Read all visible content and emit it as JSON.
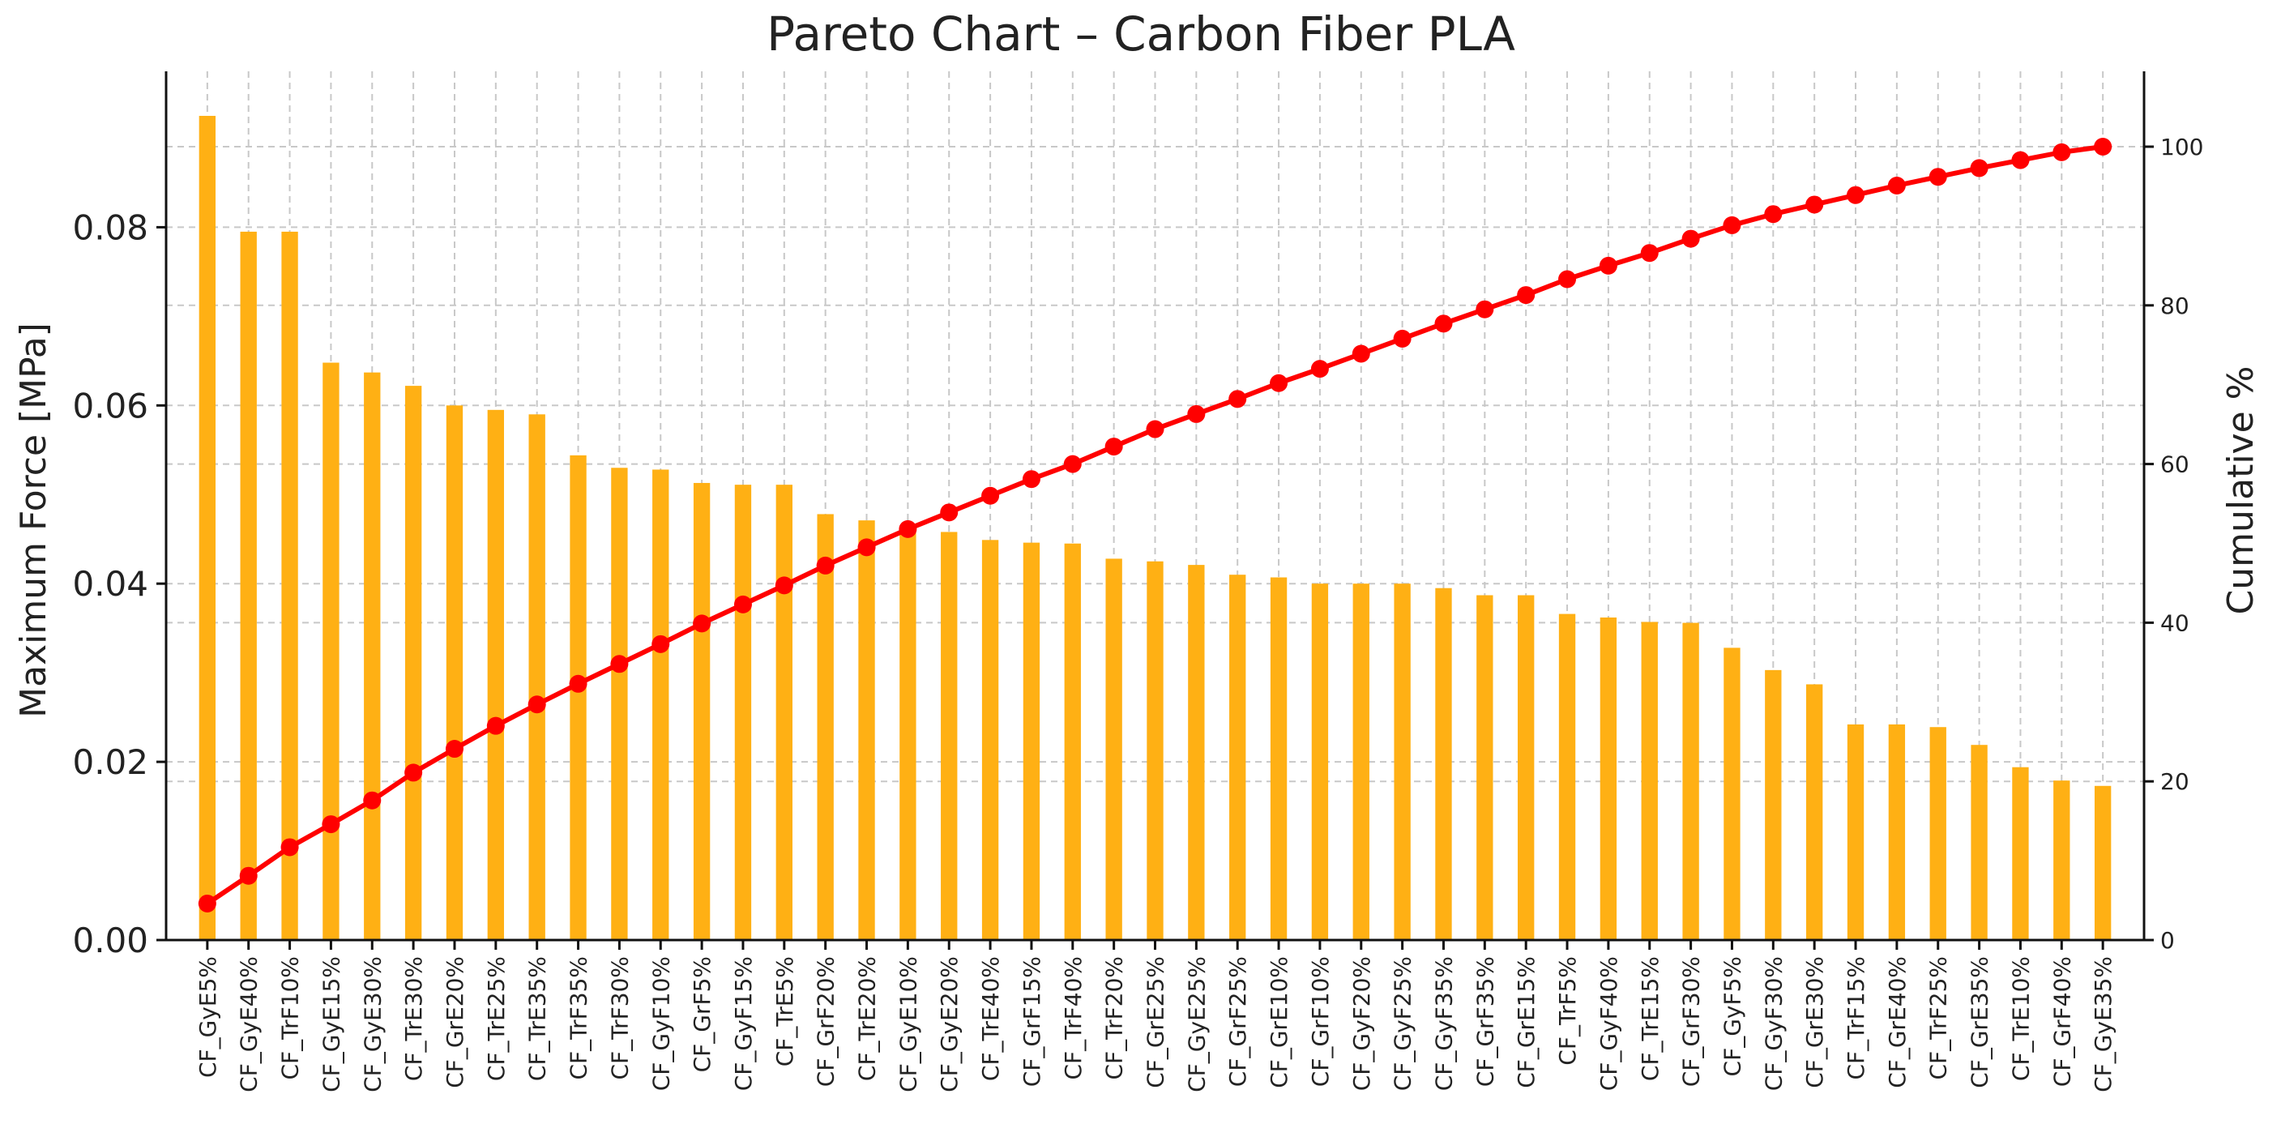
{
  "chart_data": {
    "type": "bar",
    "title": "Pareto Chart – Carbon Fiber PLA",
    "xlabel": "",
    "ylabel": "Maximum Force [MPa]",
    "y2label": "Cumulative %",
    "ylim": [
      0,
      0.0975
    ],
    "y2lim": [
      0,
      109.5
    ],
    "yticks": [
      "0.00",
      "0.02",
      "0.04",
      "0.06",
      "0.08"
    ],
    "y2ticks": [
      "0",
      "20",
      "40",
      "60",
      "80",
      "100"
    ],
    "grid": true,
    "categories": [
      "CF_GyE5%",
      "CF_GyE40%",
      "CF_TrF10%",
      "CF_GyE15%",
      "CF_GyE30%",
      "CF_TrE30%",
      "CF_GrE20%",
      "CF_TrE25%",
      "CF_TrE35%",
      "CF_TrF35%",
      "CF_TrF30%",
      "CF_GyF10%",
      "CF_GrF5%",
      "CF_GyF15%",
      "CF_TrE5%",
      "CF_GrF20%",
      "CF_TrE20%",
      "CF_GyE10%",
      "CF_GyE20%",
      "CF_TrE40%",
      "CF_GrF15%",
      "CF_TrF40%",
      "CF_TrF20%",
      "CF_GrE25%",
      "CF_GyE25%",
      "CF_GrF25%",
      "CF_GrE10%",
      "CF_GrF10%",
      "CF_GyF20%",
      "CF_GyF25%",
      "CF_GyF35%",
      "CF_GrF35%",
      "CF_GrE15%",
      "CF_TrF5%",
      "CF_GyF40%",
      "CF_TrE15%",
      "CF_GrF30%",
      "CF_GyF5%",
      "CF_GyF30%",
      "CF_GrE30%",
      "CF_TrF15%",
      "CF_GrE40%",
      "CF_TrF25%",
      "CF_GrE35%",
      "CF_TrE10%",
      "CF_GrF40%",
      "CF_GyE35%"
    ],
    "series": [
      {
        "name": "Maximum Force [MPa]",
        "type": "bar",
        "color": "#FFB014",
        "values": [
          0.0925,
          0.0795,
          0.0795,
          0.0648,
          0.0637,
          0.0622,
          0.06,
          0.0595,
          0.059,
          0.0544,
          0.053,
          0.0528,
          0.0513,
          0.0511,
          0.0511,
          0.0478,
          0.0471,
          0.0462,
          0.0458,
          0.0449,
          0.0446,
          0.0445,
          0.0428,
          0.0425,
          0.0421,
          0.041,
          0.0407,
          0.04,
          0.04,
          0.04,
          0.0395,
          0.0387,
          0.0387,
          0.0366,
          0.0362,
          0.0357,
          0.0356,
          0.0328,
          0.0303,
          0.0287,
          0.0242,
          0.0242,
          0.0239,
          0.0219,
          0.0194,
          0.0179,
          0.0173
        ]
      },
      {
        "name": "Cumulative %",
        "type": "line",
        "color": "#FF0000",
        "values": [
          4.6,
          8.1,
          11.7,
          14.6,
          17.6,
          21.1,
          24.1,
          27.0,
          29.7,
          32.3,
          34.8,
          37.3,
          39.9,
          42.3,
          44.7,
          47.2,
          49.5,
          51.8,
          53.9,
          56.0,
          58.1,
          60.0,
          62.2,
          64.4,
          66.3,
          68.2,
          70.2,
          72.0,
          73.9,
          75.8,
          77.7,
          79.5,
          81.3,
          83.3,
          85.0,
          86.6,
          88.4,
          90.1,
          91.5,
          92.7,
          93.9,
          95.1,
          96.2,
          97.3,
          98.3,
          99.3,
          100.0
        ]
      }
    ]
  }
}
